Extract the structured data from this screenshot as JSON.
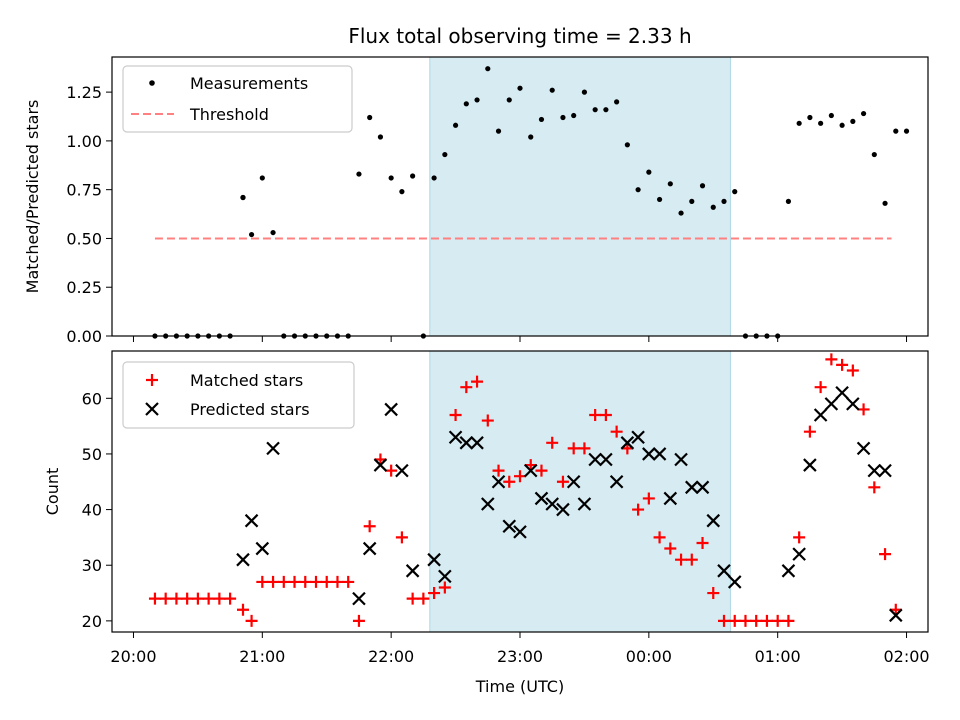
{
  "chart_data": [
    {
      "type": "scatter",
      "title": "Flux total observing time = 2.33 h",
      "xlabel": "",
      "ylabel": "Matched/Predicted stars",
      "ylim": [
        0.0,
        1.43
      ],
      "yticks": [
        "0.00",
        "0.25",
        "0.50",
        "0.75",
        "1.00",
        "1.25"
      ],
      "x_time_unit": "minutes after 20:00 UTC",
      "highlight_span": [
        "22:18",
        "00:38"
      ],
      "legend": {
        "placement": "top-left",
        "entries": [
          "Measurements",
          "Threshold"
        ]
      },
      "threshold": {
        "name": "Threshold",
        "value": 0.5,
        "x_range": [
          "20:10",
          "01:53"
        ],
        "color": "#ff8080"
      },
      "series": [
        {
          "name": "Measurements",
          "color": "#000000",
          "x": [
            "20:10",
            "20:15",
            "20:20",
            "20:25",
            "20:30",
            "20:35",
            "20:40",
            "20:45",
            "20:51",
            "20:51",
            "20:55",
            "21:00",
            "21:05",
            "21:10",
            "21:15",
            "21:20",
            "21:25",
            "21:30",
            "21:35",
            "21:40",
            "21:45",
            "21:50",
            "21:55",
            "22:00",
            "22:05",
            "22:10",
            "22:15",
            "22:20",
            "22:25",
            "22:30",
            "22:35",
            "22:40",
            "22:45",
            "22:50",
            "22:55",
            "23:00",
            "23:05",
            "23:10",
            "23:15",
            "23:20",
            "23:25",
            "23:30",
            "23:35",
            "23:40",
            "23:45",
            "23:50",
            "23:55",
            "00:00",
            "00:05",
            "00:10",
            "00:15",
            "00:20",
            "00:25",
            "00:30",
            "00:35",
            "00:40",
            "00:45",
            "00:50",
            "00:55",
            "01:00",
            "01:05",
            "01:10",
            "01:15",
            "01:20",
            "01:25",
            "01:30",
            "01:35",
            "01:40",
            "01:45",
            "01:50",
            "01:55",
            "02:00"
          ],
          "y": [
            0.0,
            0.0,
            0.0,
            0.0,
            0.0,
            0.0,
            0.0,
            0.0,
            0.71,
            0.71,
            0.52,
            0.81,
            0.53,
            0.0,
            0.0,
            0.0,
            0.0,
            0.0,
            0.0,
            0.0,
            0.83,
            1.12,
            1.02,
            0.81,
            0.74,
            0.82,
            0.0,
            0.81,
            0.93,
            1.08,
            1.19,
            1.21,
            1.37,
            1.05,
            1.21,
            1.27,
            1.02,
            1.11,
            1.26,
            1.12,
            1.13,
            1.25,
            1.16,
            1.16,
            1.2,
            0.98,
            0.75,
            0.84,
            0.7,
            0.78,
            0.63,
            0.69,
            0.77,
            0.66,
            0.69,
            0.74,
            0.0,
            0.0,
            0.0,
            0.0,
            0.69,
            1.09,
            1.12,
            1.09,
            1.13,
            1.08,
            1.1,
            1.14,
            0.93,
            0.68,
            1.05,
            1.05
          ]
        }
      ]
    },
    {
      "type": "scatter",
      "title": "",
      "xlabel": "Time (UTC)",
      "ylabel": "Count",
      "ylim": [
        18,
        68.5
      ],
      "yticks": [
        "20",
        "30",
        "40",
        "50",
        "60"
      ],
      "xticks": [
        "20:00",
        "21:00",
        "22:00",
        "23:00",
        "00:00",
        "01:00",
        "02:00"
      ],
      "highlight_span": [
        "22:18",
        "00:38"
      ],
      "legend": {
        "placement": "top-left",
        "entries": [
          "Matched stars",
          "Predicted stars"
        ]
      },
      "series": [
        {
          "name": "Matched stars",
          "marker": "plus",
          "color": "#ff0000",
          "x": [
            "20:10",
            "20:15",
            "20:20",
            "20:25",
            "20:30",
            "20:35",
            "20:40",
            "20:45",
            "20:51",
            "20:55",
            "21:00",
            "21:05",
            "21:10",
            "21:15",
            "21:20",
            "21:25",
            "21:30",
            "21:35",
            "21:40",
            "21:45",
            "21:50",
            "21:55",
            "22:00",
            "22:05",
            "22:10",
            "22:15",
            "22:20",
            "22:25",
            "22:30",
            "22:35",
            "22:40",
            "22:45",
            "22:50",
            "22:55",
            "23:00",
            "23:05",
            "23:10",
            "23:15",
            "23:20",
            "23:25",
            "23:30",
            "23:35",
            "23:40",
            "23:45",
            "23:50",
            "23:55",
            "00:00",
            "00:05",
            "00:10",
            "00:15",
            "00:20",
            "00:25",
            "00:30",
            "00:35",
            "00:40",
            "00:45",
            "00:50",
            "00:55",
            "01:00",
            "01:05",
            "01:10",
            "01:15",
            "01:20",
            "01:25",
            "01:30",
            "01:35",
            "01:40",
            "01:45",
            "01:50",
            "01:55"
          ],
          "y": [
            24,
            24,
            24,
            24,
            24,
            24,
            24,
            24,
            22,
            20,
            27,
            27,
            27,
            27,
            27,
            27,
            27,
            27,
            27,
            20,
            37,
            49,
            47,
            35,
            24,
            24,
            25,
            26,
            57,
            62,
            63,
            56,
            47,
            45,
            46,
            48,
            47,
            52,
            45,
            51,
            51,
            57,
            57,
            54,
            51,
            40,
            42,
            35,
            33,
            31,
            31,
            34,
            25,
            20,
            20,
            20,
            20,
            20,
            20,
            20,
            35,
            54,
            62,
            67,
            66,
            65,
            58,
            44,
            32,
            22
          ]
        },
        {
          "name": "Predicted stars",
          "marker": "x",
          "color": "#000000",
          "x": [
            "20:51",
            "20:55",
            "21:00",
            "21:05",
            "21:45",
            "21:50",
            "21:55",
            "22:00",
            "22:05",
            "22:10",
            "22:20",
            "22:25",
            "22:30",
            "22:35",
            "22:40",
            "22:45",
            "22:50",
            "22:55",
            "23:00",
            "23:05",
            "23:10",
            "23:15",
            "23:20",
            "23:25",
            "23:30",
            "23:35",
            "23:40",
            "23:45",
            "23:50",
            "23:55",
            "00:00",
            "00:05",
            "00:10",
            "00:15",
            "00:20",
            "00:25",
            "00:30",
            "00:35",
            "00:40",
            "01:05",
            "01:10",
            "01:15",
            "01:20",
            "01:25",
            "01:30",
            "01:35",
            "01:40",
            "01:45",
            "01:50",
            "01:55"
          ],
          "y": [
            31,
            38,
            33,
            51,
            24,
            33,
            48,
            58,
            47,
            29,
            31,
            28,
            53,
            52,
            52,
            41,
            45,
            37,
            36,
            47,
            42,
            41,
            40,
            45,
            41,
            49,
            49,
            45,
            52,
            53,
            50,
            50,
            42,
            49,
            44,
            44,
            38,
            29,
            27,
            29,
            32,
            48,
            57,
            59,
            61,
            59,
            51,
            47,
            47,
            21
          ]
        }
      ]
    }
  ]
}
